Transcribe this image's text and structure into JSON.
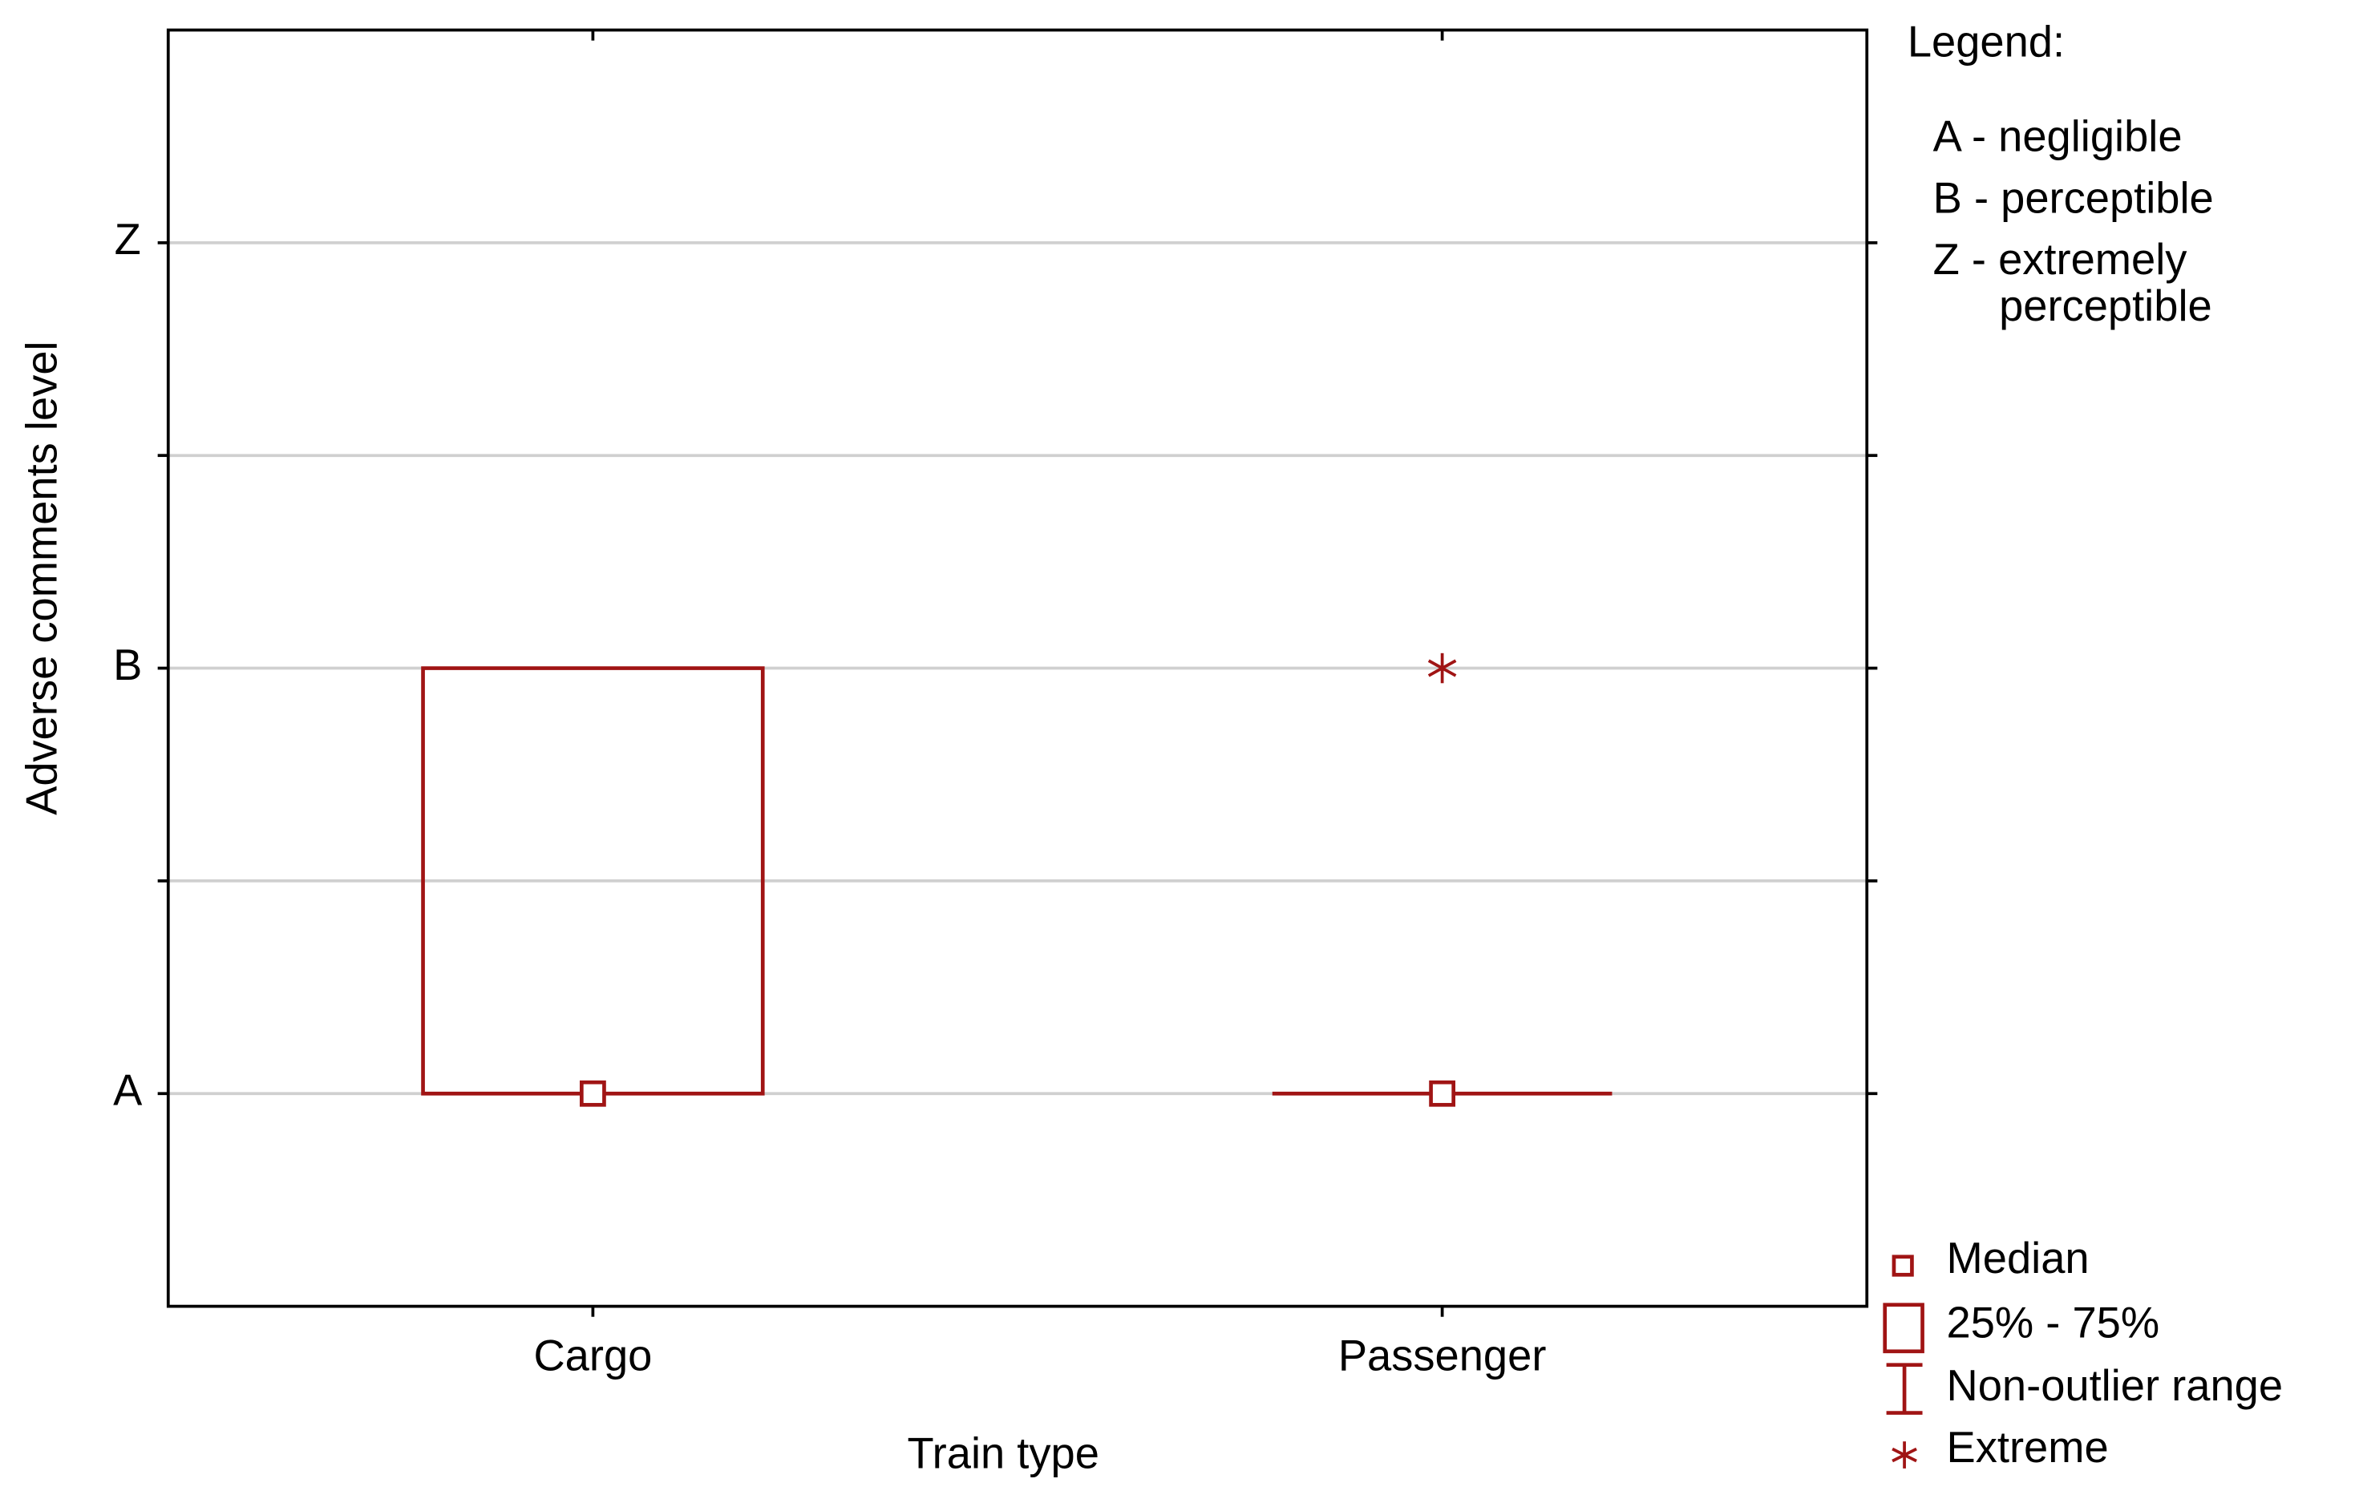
{
  "chart_data": {
    "type": "box",
    "x_label": "Train type",
    "y_label": "Adverse comments level",
    "categories": [
      "Cargo",
      "Passenger"
    ],
    "series": [
      {
        "color": "#a01414",
        "median": [
          1,
          1
        ],
        "q1": [
          1,
          1
        ],
        "q3": [
          2,
          1
        ],
        "whisker_low": [
          1,
          1
        ],
        "whisker_high": [
          2,
          1
        ],
        "extremes": [
          [],
          [
            2
          ]
        ]
      }
    ],
    "ylim": [
      0.5,
      3.5
    ],
    "yticks": [
      {
        "value": 1,
        "label": "A"
      },
      {
        "value": 2,
        "label": "B"
      },
      {
        "value": 3,
        "label": "Z"
      }
    ],
    "yminor": [
      1.5,
      2.5
    ],
    "grid": true,
    "legend": {
      "labels": [
        "Median",
        "25% - 75%",
        "Non-outlier range",
        "Extreme"
      ],
      "position": "bottom-right"
    },
    "note": {
      "title": "Legend:",
      "lines": [
        "A - negligible",
        "B - perceptible",
        "Z - extremely",
        "perceptible"
      ]
    }
  }
}
